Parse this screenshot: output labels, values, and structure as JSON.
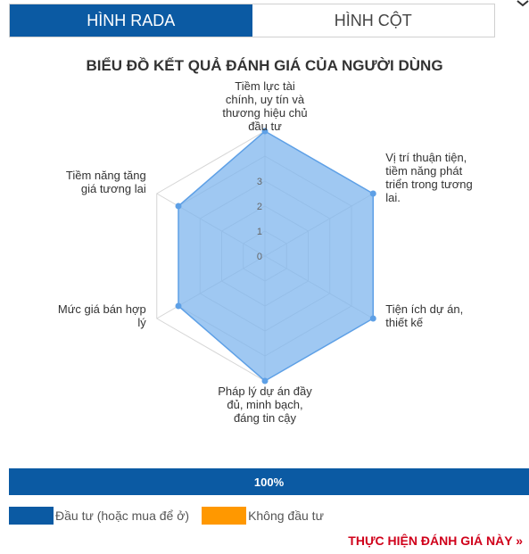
{
  "tabs": [
    {
      "label": "HÌNH RADA",
      "active": true
    },
    {
      "label": "HÌNH CỘT",
      "active": false
    }
  ],
  "chart_data": {
    "type": "radar",
    "title": "BIỂU ĐỒ KẾT QUẢ ĐÁNH GIÁ CỦA NGƯỜI DÙNG",
    "categories": [
      "Tiềm lực tài chính, uy tín và thương hiệu chủ đầu tư",
      "Vị trí thuận tiện, tiềm năng phát triển trong tương lai.",
      "Tiện ích dự án, thiết kế",
      "Pháp lý dự án đầy đủ, minh bạch, đáng tin cậy",
      "Mức giá bán hợp lý",
      "Tiềm năng tăng giá tương lai"
    ],
    "category_lines": [
      [
        "Tiềm lực tài",
        "chính, uy tín và",
        "thương hiệu chủ",
        "đầu tư"
      ],
      [
        "Vị trí thuận tiện,",
        "tiềm năng phát",
        "triển trong tương",
        "lai."
      ],
      [
        "Tiện ích dự án,",
        "thiết kế"
      ],
      [
        "Pháp lý dự án đầy",
        "đủ, minh bạch,",
        "đáng tin cậy"
      ],
      [
        "Mức giá bán hợp",
        "lý"
      ],
      [
        "Tiềm năng tăng",
        "giá tương lai"
      ]
    ],
    "series": [
      {
        "name": "Đầu tư (hoặc mua để ở)",
        "values": [
          5,
          5,
          5,
          5,
          4,
          4
        ],
        "color": "#7fb5ee"
      },
      {
        "name": "Không đầu tư",
        "values": [
          0,
          0,
          0,
          0,
          0,
          0
        ],
        "color": "#ff9800"
      }
    ],
    "range": [
      0,
      5
    ],
    "tick_labels": [
      "0",
      "1",
      "2",
      "3"
    ],
    "tick_values": [
      0,
      1,
      2,
      3
    ],
    "legend_position": "bottom-left"
  },
  "progress": {
    "label": "100%",
    "value": 1.0
  },
  "cta": {
    "label": "THỰC HIỆN ĐÁNH GIÁ NÀY »"
  },
  "colors": {
    "primary": "#0b5aa3",
    "series_fill": "#7fb5ee",
    "series_stroke": "#5ea0e6",
    "secondary": "#ff9800",
    "cta": "#d0021b"
  }
}
